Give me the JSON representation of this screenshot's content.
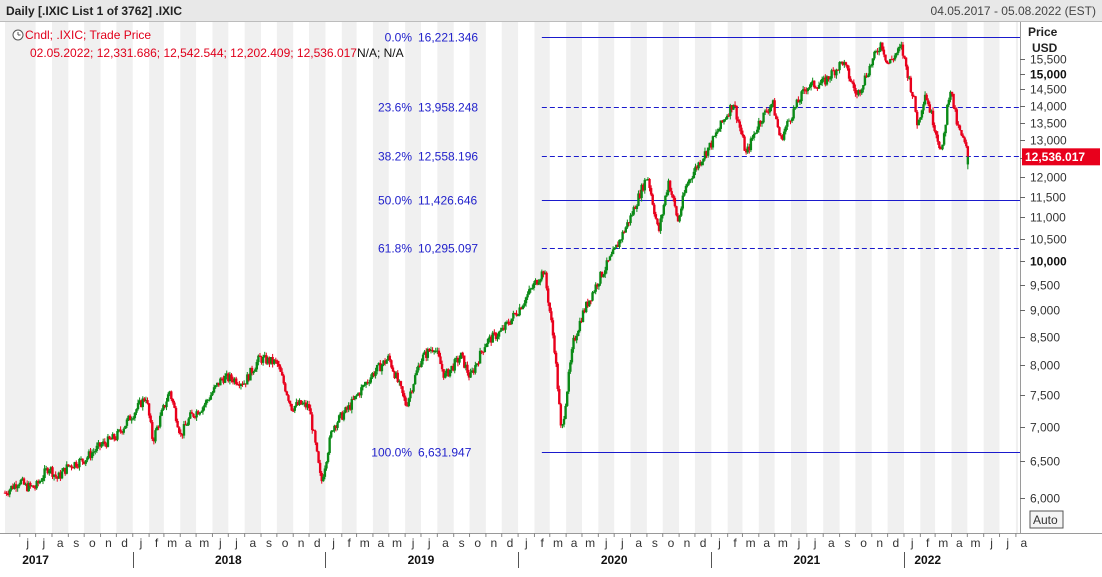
{
  "window": {
    "title": "Daily [.IXIC List 1 of 3762] .IXIC",
    "date_range": "04.05.2017 - 05.08.2022 (EST)"
  },
  "legend": {
    "line1": "Cndl; .IXIC; Trade Price",
    "line2": "02.05.2022; 12,331.686; 12,542.544; 12,202.409; 12,536.017",
    "line2_na": "N/A; N/A",
    "icon": "clock-icon"
  },
  "price_axis": {
    "label": "Price",
    "currency": "USD",
    "last_value_label": "12,536.017",
    "auto_label": "Auto"
  },
  "colors": {
    "up": "#0b8a17",
    "down": "#e8001c",
    "fib": "#1a1acc",
    "band": "#f0f0f0",
    "last_badge": "#e8001c"
  },
  "chart_data": {
    "type": "candlestick",
    "title": "Daily [.IXIC List 1 of 3762] .IXIC",
    "x_range": [
      "2017-05-04",
      "2022-08-05"
    ],
    "ylim": [
      5600,
      16700
    ],
    "y_scale": "log",
    "y_label": "Price USD",
    "last_candle": {
      "date": "2022-05-02",
      "open": 12331.686,
      "high": 12542.544,
      "low": 12202.409,
      "close": 12536.017
    },
    "y_ticks": [
      {
        "value": 6000,
        "label": "6,000",
        "major": false
      },
      {
        "value": 6500,
        "label": "6,500",
        "major": false
      },
      {
        "value": 7000,
        "label": "7,000",
        "major": false
      },
      {
        "value": 7500,
        "label": "7,500",
        "major": false
      },
      {
        "value": 8000,
        "label": "8,000",
        "major": false
      },
      {
        "value": 8500,
        "label": "8,500",
        "major": false
      },
      {
        "value": 9000,
        "label": "9,000",
        "major": false
      },
      {
        "value": 9500,
        "label": "9,500",
        "major": false
      },
      {
        "value": 10000,
        "label": "10,000",
        "major": true
      },
      {
        "value": 10500,
        "label": "10,500",
        "major": false
      },
      {
        "value": 11000,
        "label": "11,000",
        "major": false
      },
      {
        "value": 11500,
        "label": "11,500",
        "major": false
      },
      {
        "value": 12000,
        "label": "12,000",
        "major": false
      },
      {
        "value": 12500,
        "label": "12,500",
        "major": false
      },
      {
        "value": 13000,
        "label": "13,000",
        "major": false
      },
      {
        "value": 13500,
        "label": "13,500",
        "major": false
      },
      {
        "value": 14000,
        "label": "14,000",
        "major": false
      },
      {
        "value": 14500,
        "label": "14,500",
        "major": false
      },
      {
        "value": 15000,
        "label": "15,000",
        "major": true
      },
      {
        "value": 15500,
        "label": "15,500",
        "major": false
      }
    ],
    "fib_levels": [
      {
        "pct": "0.0%",
        "value": 16221.346,
        "label": "16,221.346",
        "style": "solid"
      },
      {
        "pct": "23.6%",
        "value": 13958.248,
        "label": "13,958.248",
        "style": "dashed"
      },
      {
        "pct": "38.2%",
        "value": 12558.196,
        "label": "12,558.196",
        "style": "dashed"
      },
      {
        "pct": "50.0%",
        "value": 11426.646,
        "label": "11,426.646",
        "style": "solid"
      },
      {
        "pct": "61.8%",
        "value": 10295.097,
        "label": "10,295.097",
        "style": "dashed"
      },
      {
        "pct": "100.0%",
        "value": 6631.947,
        "label": "6,631.947",
        "style": "solid"
      }
    ],
    "fib_line_start": "2020-02-15",
    "months": [
      {
        "date": "2017-06-01",
        "label": "j"
      },
      {
        "date": "2017-07-01",
        "label": "j"
      },
      {
        "date": "2017-08-01",
        "label": "a"
      },
      {
        "date": "2017-09-01",
        "label": "s"
      },
      {
        "date": "2017-10-01",
        "label": "o"
      },
      {
        "date": "2017-11-01",
        "label": "n"
      },
      {
        "date": "2017-12-01",
        "label": "d"
      },
      {
        "date": "2018-01-01",
        "label": "j"
      },
      {
        "date": "2018-02-01",
        "label": "f"
      },
      {
        "date": "2018-03-01",
        "label": "m"
      },
      {
        "date": "2018-04-01",
        "label": "a"
      },
      {
        "date": "2018-05-01",
        "label": "m"
      },
      {
        "date": "2018-06-01",
        "label": "j"
      },
      {
        "date": "2018-07-01",
        "label": "j"
      },
      {
        "date": "2018-08-01",
        "label": "a"
      },
      {
        "date": "2018-09-01",
        "label": "s"
      },
      {
        "date": "2018-10-01",
        "label": "o"
      },
      {
        "date": "2018-11-01",
        "label": "n"
      },
      {
        "date": "2018-12-01",
        "label": "d"
      },
      {
        "date": "2019-01-01",
        "label": "j"
      },
      {
        "date": "2019-02-01",
        "label": "f"
      },
      {
        "date": "2019-03-01",
        "label": "m"
      },
      {
        "date": "2019-04-01",
        "label": "a"
      },
      {
        "date": "2019-05-01",
        "label": "m"
      },
      {
        "date": "2019-06-01",
        "label": "j"
      },
      {
        "date": "2019-07-01",
        "label": "j"
      },
      {
        "date": "2019-08-01",
        "label": "a"
      },
      {
        "date": "2019-09-01",
        "label": "s"
      },
      {
        "date": "2019-10-01",
        "label": "o"
      },
      {
        "date": "2019-11-01",
        "label": "n"
      },
      {
        "date": "2019-12-01",
        "label": "d"
      },
      {
        "date": "2020-01-01",
        "label": "j"
      },
      {
        "date": "2020-02-01",
        "label": "f"
      },
      {
        "date": "2020-03-01",
        "label": "m"
      },
      {
        "date": "2020-04-01",
        "label": "a"
      },
      {
        "date": "2020-05-01",
        "label": "m"
      },
      {
        "date": "2020-06-01",
        "label": "j"
      },
      {
        "date": "2020-07-01",
        "label": "j"
      },
      {
        "date": "2020-08-01",
        "label": "a"
      },
      {
        "date": "2020-09-01",
        "label": "s"
      },
      {
        "date": "2020-10-01",
        "label": "o"
      },
      {
        "date": "2020-11-01",
        "label": "n"
      },
      {
        "date": "2020-12-01",
        "label": "d"
      },
      {
        "date": "2021-01-01",
        "label": "j"
      },
      {
        "date": "2021-02-01",
        "label": "f"
      },
      {
        "date": "2021-03-01",
        "label": "m"
      },
      {
        "date": "2021-04-01",
        "label": "a"
      },
      {
        "date": "2021-05-01",
        "label": "m"
      },
      {
        "date": "2021-06-01",
        "label": "j"
      },
      {
        "date": "2021-07-01",
        "label": "j"
      },
      {
        "date": "2021-08-01",
        "label": "a"
      },
      {
        "date": "2021-09-01",
        "label": "s"
      },
      {
        "date": "2021-10-01",
        "label": "o"
      },
      {
        "date": "2021-11-01",
        "label": "n"
      },
      {
        "date": "2021-12-01",
        "label": "d"
      },
      {
        "date": "2022-01-01",
        "label": "j"
      },
      {
        "date": "2022-02-01",
        "label": "f"
      },
      {
        "date": "2022-03-01",
        "label": "m"
      },
      {
        "date": "2022-04-01",
        "label": "a"
      },
      {
        "date": "2022-05-01",
        "label": "m"
      },
      {
        "date": "2022-06-01",
        "label": "j"
      },
      {
        "date": "2022-07-01",
        "label": "j"
      },
      {
        "date": "2022-08-01",
        "label": "a"
      }
    ],
    "years": [
      {
        "date": "2017-07-01",
        "label": "2017",
        "boundary": ""
      },
      {
        "date": "2018-07-01",
        "label": "2018",
        "boundary": "2018-01-01"
      },
      {
        "date": "2019-07-01",
        "label": "2019",
        "boundary": "2019-01-01"
      },
      {
        "date": "2020-07-01",
        "label": "2020",
        "boundary": "2020-01-01"
      },
      {
        "date": "2021-07-01",
        "label": "2021",
        "boundary": "2021-01-01"
      },
      {
        "date": "2022-02-15",
        "label": "2022",
        "boundary": "2022-01-01"
      }
    ],
    "closes_approx": [
      [
        "2017-05-04",
        6070
      ],
      [
        "2017-06-01",
        6230
      ],
      [
        "2017-06-12",
        6150
      ],
      [
        "2017-07-01",
        6140
      ],
      [
        "2017-07-26",
        6420
      ],
      [
        "2017-08-11",
        6260
      ],
      [
        "2017-09-01",
        6430
      ],
      [
        "2017-10-01",
        6520
      ],
      [
        "2017-11-01",
        6720
      ],
      [
        "2017-12-01",
        6850
      ],
      [
        "2018-01-26",
        7470
      ],
      [
        "2018-02-08",
        6790
      ],
      [
        "2018-03-12",
        7560
      ],
      [
        "2018-04-02",
        6870
      ],
      [
        "2018-04-20",
        7150
      ],
      [
        "2018-05-15",
        7320
      ],
      [
        "2018-06-20",
        7780
      ],
      [
        "2018-07-10",
        7760
      ],
      [
        "2018-08-01",
        7700
      ],
      [
        "2018-08-29",
        8110
      ],
      [
        "2018-10-01",
        8030
      ],
      [
        "2018-10-29",
        7300
      ],
      [
        "2018-11-15",
        7350
      ],
      [
        "2018-12-01",
        7300
      ],
      [
        "2018-12-24",
        6190
      ],
      [
        "2019-01-15",
        7000
      ],
      [
        "2019-02-15",
        7300
      ],
      [
        "2019-03-15",
        7650
      ],
      [
        "2019-04-01",
        7850
      ],
      [
        "2019-05-01",
        8120
      ],
      [
        "2019-06-03",
        7330
      ],
      [
        "2019-07-01",
        8100
      ],
      [
        "2019-07-26",
        8330
      ],
      [
        "2019-08-15",
        7800
      ],
      [
        "2019-09-15",
        8150
      ],
      [
        "2019-10-02",
        7780
      ],
      [
        "2019-11-01",
        8400
      ],
      [
        "2019-12-01",
        8600
      ],
      [
        "2020-01-01",
        9000
      ],
      [
        "2020-02-19",
        9820
      ],
      [
        "2020-03-10",
        8300
      ],
      [
        "2020-03-23",
        6860
      ],
      [
        "2020-04-15",
        8400
      ],
      [
        "2020-05-01",
        8900
      ],
      [
        "2020-06-01",
        9600
      ],
      [
        "2020-07-01",
        10200
      ],
      [
        "2020-08-01",
        11000
      ],
      [
        "2020-09-02",
        12050
      ],
      [
        "2020-09-23",
        10630
      ],
      [
        "2020-10-12",
        11900
      ],
      [
        "2020-10-30",
        10900
      ],
      [
        "2020-11-15",
        11800
      ],
      [
        "2020-12-01",
        12200
      ],
      [
        "2021-01-01",
        12900
      ],
      [
        "2021-02-12",
        14100
      ],
      [
        "2021-03-08",
        12600
      ],
      [
        "2021-04-01",
        13500
      ],
      [
        "2021-04-27",
        14100
      ],
      [
        "2021-05-12",
        13000
      ],
      [
        "2021-06-01",
        13700
      ],
      [
        "2021-07-01",
        14600
      ],
      [
        "2021-08-01",
        14700
      ],
      [
        "2021-09-07",
        15400
      ],
      [
        "2021-10-04",
        14300
      ],
      [
        "2021-11-19",
        16057
      ],
      [
        "2021-12-01",
        15300
      ],
      [
        "2021-12-27",
        15870
      ],
      [
        "2022-01-20",
        14150
      ],
      [
        "2022-01-27",
        13400
      ],
      [
        "2022-02-10",
        14400
      ],
      [
        "2022-03-14",
        12600
      ],
      [
        "2022-03-29",
        14600
      ],
      [
        "2022-04-12",
        13400
      ],
      [
        "2022-04-28",
        12800
      ],
      [
        "2022-05-02",
        12536
      ]
    ]
  }
}
